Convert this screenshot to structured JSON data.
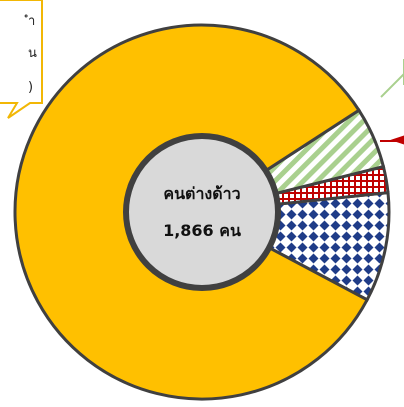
{
  "chart_data": {
    "type": "pie",
    "variant": "donut",
    "center_label": "คนต่างด้าว",
    "center_total": "1,866 คน",
    "legend": "none",
    "slices": [
      {
        "key": "main",
        "value": 1550,
        "color": "#FFC000",
        "pattern": "solid"
      },
      {
        "key": "blue-dots",
        "value": 176,
        "color": "#1F3C88",
        "pattern": "dots-on-white"
      },
      {
        "key": "red-grid",
        "value": 42,
        "color": "#C00000",
        "pattern": "grid-on-white"
      },
      {
        "key": "green-stripes",
        "value": 98,
        "color": "#A9D08E",
        "pattern": "diagonal-stripes"
      }
    ],
    "callouts": [
      {
        "lines": [
          "ำ",
          "น",
          ")"
        ],
        "target": "main"
      },
      {
        "lines": [],
        "target": "green-stripes"
      },
      {
        "lines": [],
        "target": "red-grid"
      }
    ]
  }
}
